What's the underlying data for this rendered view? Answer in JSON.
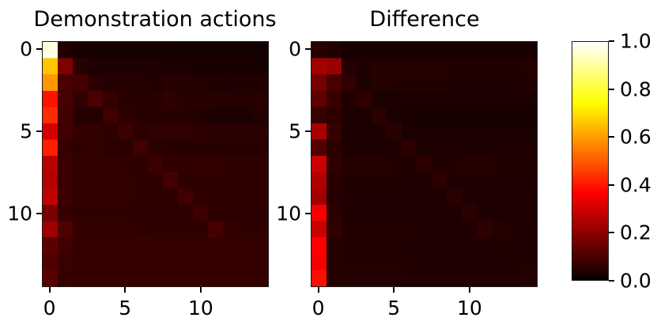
{
  "figure": {
    "background": "#ffffff",
    "text_color": "#000000"
  },
  "chart_data": [
    {
      "type": "heatmap",
      "title": "Demonstration actions",
      "colormap": "hot",
      "vmin": 0.0,
      "vmax": 1.0,
      "n_rows": 15,
      "n_cols": 15,
      "xticks": [
        0,
        5,
        10
      ],
      "yticks": [
        0,
        5,
        10
      ],
      "values": [
        [
          0.97,
          0.035,
          0.022,
          0.018,
          0.015,
          0.015,
          0.015,
          0.015,
          0.015,
          0.012,
          0.012,
          0.012,
          0.012,
          0.012,
          0.012
        ],
        [
          0.66,
          0.175,
          0.045,
          0.032,
          0.028,
          0.028,
          0.03,
          0.028,
          0.026,
          0.026,
          0.022,
          0.022,
          0.022,
          0.022,
          0.022
        ],
        [
          0.59,
          0.095,
          0.085,
          0.05,
          0.04,
          0.04,
          0.04,
          0.036,
          0.044,
          0.04,
          0.038,
          0.034,
          0.03,
          0.034,
          0.034
        ],
        [
          0.39,
          0.09,
          0.058,
          0.095,
          0.065,
          0.045,
          0.045,
          0.045,
          0.055,
          0.045,
          0.045,
          0.042,
          0.04,
          0.04,
          0.045
        ],
        [
          0.43,
          0.085,
          0.04,
          0.038,
          0.08,
          0.05,
          0.045,
          0.044,
          0.044,
          0.042,
          0.032,
          0.028,
          0.028,
          0.028,
          0.038
        ],
        [
          0.3,
          0.08,
          0.06,
          0.058,
          0.054,
          0.072,
          0.05,
          0.058,
          0.058,
          0.058,
          0.05,
          0.048,
          0.048,
          0.048,
          0.048
        ],
        [
          0.41,
          0.065,
          0.055,
          0.058,
          0.052,
          0.046,
          0.08,
          0.048,
          0.044,
          0.044,
          0.044,
          0.044,
          0.044,
          0.044,
          0.044
        ],
        [
          0.26,
          0.07,
          0.058,
          0.058,
          0.058,
          0.056,
          0.054,
          0.072,
          0.056,
          0.056,
          0.058,
          0.058,
          0.054,
          0.054,
          0.054
        ],
        [
          0.25,
          0.07,
          0.06,
          0.064,
          0.06,
          0.058,
          0.054,
          0.054,
          0.085,
          0.054,
          0.054,
          0.054,
          0.054,
          0.054,
          0.054
        ],
        [
          0.27,
          0.075,
          0.06,
          0.06,
          0.06,
          0.058,
          0.055,
          0.055,
          0.055,
          0.08,
          0.056,
          0.055,
          0.055,
          0.055,
          0.055
        ],
        [
          0.165,
          0.065,
          0.055,
          0.055,
          0.055,
          0.055,
          0.05,
          0.05,
          0.05,
          0.05,
          0.075,
          0.052,
          0.05,
          0.05,
          0.05
        ],
        [
          0.22,
          0.1,
          0.06,
          0.06,
          0.06,
          0.06,
          0.055,
          0.055,
          0.055,
          0.055,
          0.055,
          0.085,
          0.062,
          0.055,
          0.055
        ],
        [
          0.12,
          0.08,
          0.065,
          0.065,
          0.065,
          0.065,
          0.065,
          0.062,
          0.062,
          0.062,
          0.062,
          0.062,
          0.065,
          0.062,
          0.062
        ],
        [
          0.1,
          0.07,
          0.064,
          0.064,
          0.064,
          0.064,
          0.064,
          0.062,
          0.062,
          0.062,
          0.062,
          0.062,
          0.062,
          0.065,
          0.062
        ],
        [
          0.12,
          0.066,
          0.064,
          0.064,
          0.064,
          0.064,
          0.064,
          0.062,
          0.062,
          0.062,
          0.062,
          0.062,
          0.062,
          0.062,
          0.065
        ]
      ]
    },
    {
      "type": "heatmap",
      "title": "Difference",
      "colormap": "hot",
      "vmin": 0.0,
      "vmax": 1.0,
      "n_rows": 15,
      "n_cols": 15,
      "xticks": [
        0,
        5,
        10
      ],
      "yticks": [
        0,
        5,
        10
      ],
      "values": [
        [
          0.045,
          0.035,
          0.022,
          0.02,
          0.02,
          0.02,
          0.02,
          0.02,
          0.02,
          0.02,
          0.02,
          0.02,
          0.02,
          0.02,
          0.02
        ],
        [
          0.23,
          0.215,
          0.04,
          0.03,
          0.038,
          0.038,
          0.038,
          0.038,
          0.038,
          0.035,
          0.035,
          0.035,
          0.035,
          0.035,
          0.04
        ],
        [
          0.16,
          0.09,
          0.058,
          0.028,
          0.038,
          0.036,
          0.034,
          0.034,
          0.034,
          0.03,
          0.03,
          0.03,
          0.026,
          0.03,
          0.034
        ],
        [
          0.125,
          0.065,
          0.034,
          0.056,
          0.024,
          0.024,
          0.024,
          0.024,
          0.024,
          0.024,
          0.024,
          0.024,
          0.024,
          0.024,
          0.024
        ],
        [
          0.07,
          0.052,
          0.028,
          0.026,
          0.048,
          0.024,
          0.021,
          0.021,
          0.021,
          0.021,
          0.021,
          0.021,
          0.021,
          0.021,
          0.021
        ],
        [
          0.235,
          0.062,
          0.028,
          0.028,
          0.028,
          0.046,
          0.024,
          0.024,
          0.024,
          0.024,
          0.024,
          0.024,
          0.024,
          0.024,
          0.024
        ],
        [
          0.11,
          0.048,
          0.027,
          0.027,
          0.027,
          0.027,
          0.05,
          0.027,
          0.027,
          0.027,
          0.027,
          0.027,
          0.027,
          0.027,
          0.027
        ],
        [
          0.285,
          0.055,
          0.038,
          0.038,
          0.038,
          0.036,
          0.034,
          0.054,
          0.037,
          0.037,
          0.04,
          0.04,
          0.037,
          0.037,
          0.037
        ],
        [
          0.245,
          0.045,
          0.034,
          0.034,
          0.034,
          0.034,
          0.032,
          0.032,
          0.05,
          0.032,
          0.032,
          0.032,
          0.032,
          0.032,
          0.032
        ],
        [
          0.225,
          0.04,
          0.032,
          0.032,
          0.032,
          0.032,
          0.032,
          0.03,
          0.03,
          0.048,
          0.032,
          0.03,
          0.03,
          0.03,
          0.03
        ],
        [
          0.345,
          0.05,
          0.032,
          0.032,
          0.032,
          0.032,
          0.032,
          0.03,
          0.03,
          0.03,
          0.05,
          0.032,
          0.03,
          0.03,
          0.03
        ],
        [
          0.28,
          0.058,
          0.035,
          0.035,
          0.035,
          0.035,
          0.035,
          0.032,
          0.032,
          0.032,
          0.032,
          0.054,
          0.038,
          0.032,
          0.032
        ],
        [
          0.36,
          0.04,
          0.035,
          0.035,
          0.035,
          0.035,
          0.032,
          0.032,
          0.032,
          0.032,
          0.032,
          0.032,
          0.034,
          0.032,
          0.032
        ],
        [
          0.35,
          0.038,
          0.035,
          0.035,
          0.035,
          0.035,
          0.035,
          0.032,
          0.032,
          0.032,
          0.032,
          0.032,
          0.032,
          0.034,
          0.032
        ],
        [
          0.385,
          0.042,
          0.038,
          0.038,
          0.038,
          0.038,
          0.035,
          0.035,
          0.035,
          0.035,
          0.035,
          0.035,
          0.035,
          0.035,
          0.038
        ]
      ]
    }
  ],
  "colorbar": {
    "colormap": "hot",
    "vmin": 0.0,
    "vmax": 1.0,
    "tick_values": [
      1.0,
      0.8,
      0.6,
      0.4,
      0.2,
      0.0
    ],
    "tick_labels": [
      "1.0",
      "0.8",
      "0.6",
      "0.4",
      "0.2",
      "0.0"
    ]
  }
}
